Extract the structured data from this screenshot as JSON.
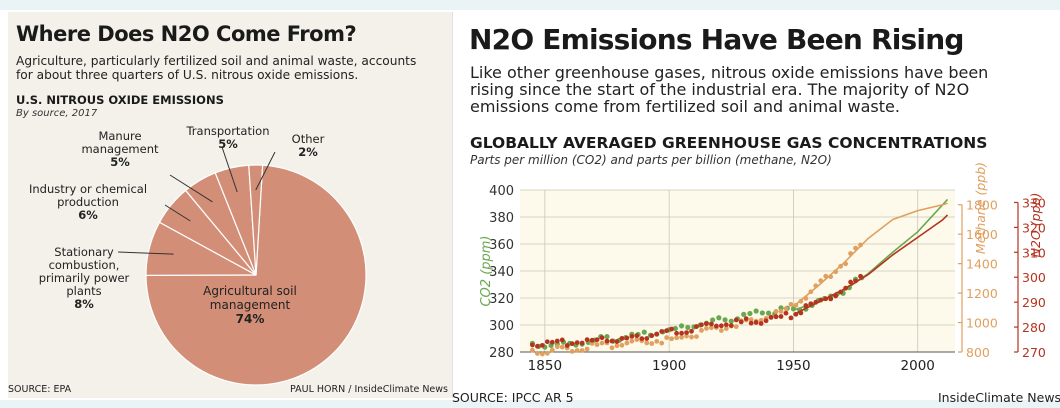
{
  "left": {
    "title": "Where Does N2O Come From?",
    "subtitle": "Agriculture, particularly fertilized soil and animal waste, accounts for about three quarters of U.S. nitrous oxide emissions.",
    "chart_title": "U.S. NITROUS OXIDE EMISSIONS",
    "chart_subtitle": "By source, 2017",
    "source": "SOURCE: EPA",
    "credit": "PAUL HORN / InsideClimate News"
  },
  "right": {
    "title": "N2O Emissions Have Been Rising",
    "subtitle": "Like other greenhouse gases, nitrous oxide emissions have been rising since the start of the industrial era. The majority of N2O emissions come from fertilized soil and animal waste.",
    "chart_title": "GLOBALLY AVERAGED GREENHOUSE GAS CONCENTRATIONS",
    "chart_subtitle": "Parts per million (CO2) and parts per billion (methane, N2O)",
    "source": "SOURCE: IPCC AR 5",
    "credit": "InsideClimate News"
  },
  "chart_data": [
    {
      "type": "pie",
      "title": "U.S. NITROUS OXIDE EMISSIONS",
      "subtitle": "By source, 2017",
      "slice_color": "#d38e78",
      "slices": [
        {
          "label": "Agricultural soil management",
          "lines": [
            "Agricultural soil",
            "management"
          ],
          "value": 74,
          "value_label": "74%"
        },
        {
          "label": "Stationary combustion, primarily power plants",
          "lines": [
            "Stationary",
            "combustion,",
            "primarily power",
            "plants"
          ],
          "value": 8,
          "value_label": "8%"
        },
        {
          "label": "Industry or chemical production",
          "lines": [
            "Industry or chemical",
            "production"
          ],
          "value": 6,
          "value_label": "6%"
        },
        {
          "label": "Manure management",
          "lines": [
            "Manure",
            "management"
          ],
          "value": 5,
          "value_label": "5%"
        },
        {
          "label": "Transportation",
          "lines": [
            "Transportation"
          ],
          "value": 5,
          "value_label": "5%"
        },
        {
          "label": "Other",
          "lines": [
            "Other"
          ],
          "value": 2,
          "value_label": "2%"
        }
      ]
    },
    {
      "type": "line",
      "title": "GLOBALLY AVERAGED GREENHOUSE GAS CONCENTRATIONS",
      "xlim": [
        1840,
        2015
      ],
      "x_ticks": [
        1850,
        1900,
        1950,
        2000
      ],
      "grid": true,
      "axes": {
        "co2": {
          "label": "CO2 (ppm)",
          "ticks": [
            280,
            300,
            320,
            340,
            360,
            380,
            400
          ],
          "lim": [
            280,
            400
          ],
          "color": "#6aa84f"
        },
        "methane": {
          "label": "Methane (ppb)",
          "ticks": [
            800,
            1000,
            1200,
            1400,
            1600,
            1800
          ],
          "lim": [
            800,
            1900
          ],
          "color": "#e0a05f"
        },
        "n2o": {
          "label": "N2O (ppb)",
          "ticks": [
            270,
            280,
            290,
            300,
            310,
            320,
            330
          ],
          "lim": [
            270,
            335
          ],
          "color": "#b5341f"
        }
      },
      "series": [
        {
          "axis": "co2",
          "x": [
            1845,
            1860,
            1880,
            1900,
            1920,
            1940,
            1950,
            1960,
            1970,
            1980,
            1990,
            2000,
            2010,
            2012
          ],
          "y": [
            285,
            286,
            291,
            296,
            303,
            310,
            311,
            317,
            325,
            338,
            354,
            369,
            389,
            393
          ]
        },
        {
          "axis": "methane",
          "x": [
            1845,
            1870,
            1900,
            1920,
            1940,
            1950,
            1960,
            1970,
            1980,
            1990,
            2000,
            2010,
            2012
          ],
          "y": [
            800,
            840,
            880,
            960,
            1040,
            1110,
            1250,
            1400,
            1570,
            1700,
            1760,
            1800,
            1810
          ]
        },
        {
          "axis": "n2o",
          "x": [
            1845,
            1880,
            1900,
            1920,
            1940,
            1950,
            1960,
            1970,
            1980,
            1990,
            2000,
            2010,
            2012
          ],
          "y": [
            273,
            275,
            278,
            281,
            283,
            285,
            290,
            295,
            301,
            309,
            316,
            323,
            325
          ]
        }
      ]
    }
  ]
}
